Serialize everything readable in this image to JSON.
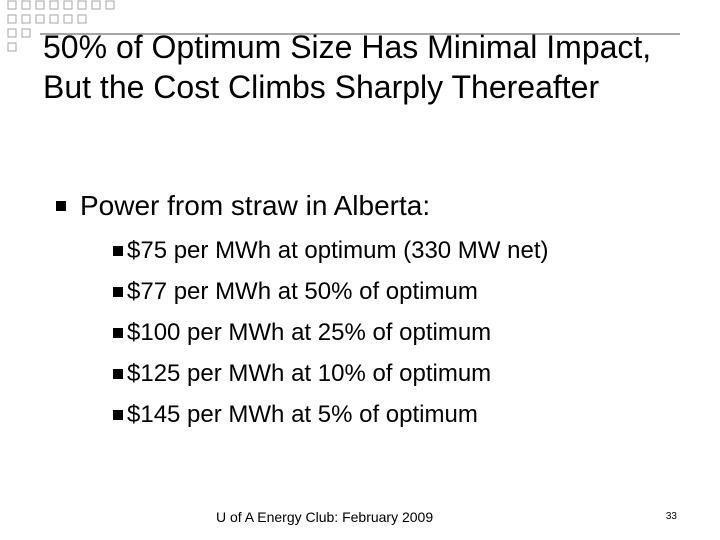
{
  "slide": {
    "title": "50% of Optimum Size Has Minimal Impact, But the Cost Climbs Sharply Thereafter",
    "bullet": "Power from straw in Alberta:",
    "sub_bullets": [
      "$75 per MWh at optimum (330 MW net)",
      "$77 per MWh at 50% of optimum",
      "$100 per MWh at 25% of optimum",
      "$125 per MWh at 10% of optimum",
      "$145 per MWh at 5% of optimum"
    ],
    "bullet_icon": "filled-square",
    "decoration": "grid-pattern"
  },
  "footer": {
    "text": "U of A Energy Club: February 2009",
    "page_number": "33"
  },
  "colors": {
    "background": "#ffffff",
    "text": "#000000",
    "decoration": "#a6a6a6"
  }
}
